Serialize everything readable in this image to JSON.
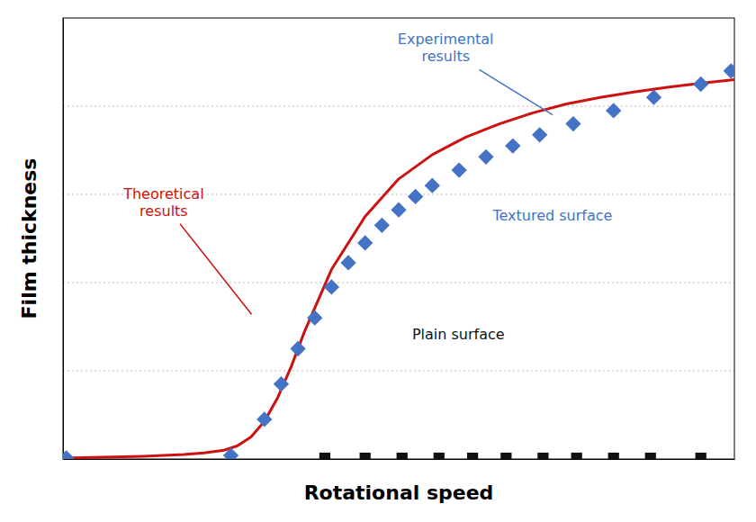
{
  "chart_data": {
    "type": "scatter",
    "x_label": "Rotational speed",
    "y_label": "Film thickness",
    "xlim": [
      0,
      10
    ],
    "ylim": [
      0,
      10
    ],
    "xticks": [],
    "yticks": [
      2.0,
      4.0,
      6.0,
      8.0
    ],
    "grid": true,
    "tick_labels": false,
    "series": [
      {
        "type": "line",
        "color": "#cc1111",
        "x": [
          0,
          0.3,
          0.6,
          0.9,
          1.2,
          1.5,
          1.8,
          2.1,
          2.4,
          2.6,
          2.8,
          3.0,
          3.2,
          3.4,
          3.6,
          3.8,
          4.0,
          4.5,
          5.0,
          5.5,
          6.0,
          6.5,
          7.0,
          7.5,
          8.0,
          8.5,
          9.0,
          9.5,
          10.0
        ],
        "values": [
          0.02,
          0.03,
          0.04,
          0.05,
          0.06,
          0.08,
          0.1,
          0.14,
          0.2,
          0.3,
          0.5,
          0.85,
          1.4,
          2.1,
          2.9,
          3.6,
          4.3,
          5.5,
          6.35,
          6.9,
          7.3,
          7.6,
          7.85,
          8.05,
          8.2,
          8.32,
          8.43,
          8.52,
          8.6
        ]
      },
      {
        "type": "scatter",
        "marker": "diamond",
        "color": "#4472c4",
        "x": [
          0.05,
          2.5,
          3.0,
          3.25,
          3.5,
          3.75,
          4.0,
          4.25,
          4.5,
          4.75,
          5.0,
          5.25,
          5.5,
          5.9,
          6.3,
          6.7,
          7.1,
          7.6,
          8.2,
          8.8,
          9.5,
          9.95
        ],
        "values": [
          0.02,
          0.08,
          0.9,
          1.7,
          2.5,
          3.2,
          3.9,
          4.45,
          4.9,
          5.3,
          5.65,
          5.95,
          6.2,
          6.55,
          6.85,
          7.1,
          7.35,
          7.6,
          7.9,
          8.2,
          8.5,
          8.8
        ]
      },
      {
        "type": "scatter",
        "marker": "square",
        "color": "#111111",
        "x": [
          3.9,
          4.5,
          5.05,
          5.6,
          6.1,
          6.6,
          7.15,
          7.65,
          8.2,
          8.75,
          9.5
        ],
        "values": [
          0.02,
          0.02,
          0.02,
          0.02,
          0.02,
          0.02,
          0.02,
          0.02,
          0.02,
          0.02,
          0.02
        ]
      }
    ],
    "annotations": [
      {
        "text": "Experimental\nresults",
        "color": "#4472c4",
        "x": 5.7,
        "y": 9.3,
        "arrow_x": 7.35,
        "arrow_y": 7.75
      },
      {
        "text": "Textured surface",
        "color": "#4472c4",
        "x": 6.4,
        "y": 5.5
      },
      {
        "text": "Theoretical\nresults",
        "color": "#cc1111",
        "x": 1.5,
        "y": 5.8,
        "arrow_x": 2.85,
        "arrow_y": 3.2
      },
      {
        "text": "Plain surface",
        "color": "#111111",
        "x": 5.2,
        "y": 2.8
      }
    ]
  }
}
